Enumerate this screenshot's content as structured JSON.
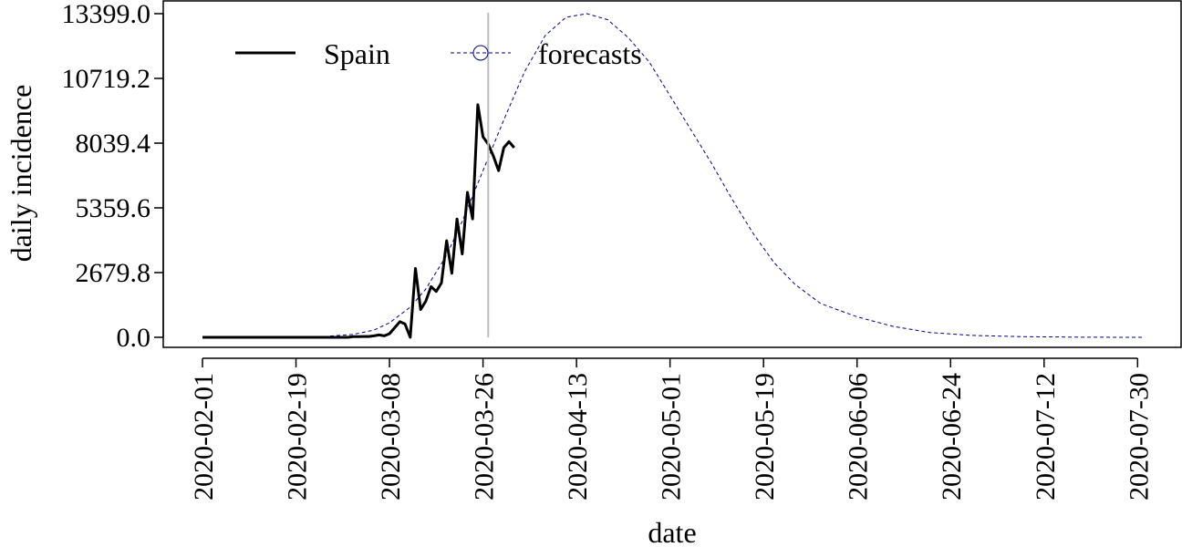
{
  "chart_data": {
    "type": "line",
    "title": "",
    "xlabel": "date",
    "ylabel": "daily incidence",
    "xlim": [
      "2020-02-01",
      "2020-07-31"
    ],
    "ylim": [
      0,
      13399.0
    ],
    "grid": false,
    "legend_position": "top-left",
    "y_ticks": [
      0.0,
      2679.8,
      5359.6,
      8039.4,
      10719.2,
      13399.0
    ],
    "y_tick_labels": [
      "0.0",
      "2679.8",
      "5359.6",
      "8039.4",
      "10719.2",
      "13399.0"
    ],
    "x_ticks": [
      "2020-02-01",
      "2020-02-19",
      "2020-03-08",
      "2020-03-26",
      "2020-04-13",
      "2020-05-01",
      "2020-05-19",
      "2020-06-06",
      "2020-06-24",
      "2020-07-12",
      "2020-07-30"
    ],
    "forecast_start": "2020-03-27",
    "series": [
      {
        "name": "Spain",
        "style": "solid",
        "color": "#000000",
        "points": [
          [
            "2020-02-01",
            0
          ],
          [
            "2020-02-15",
            0
          ],
          [
            "2020-02-29",
            0
          ],
          [
            "2020-03-01",
            25
          ],
          [
            "2020-03-02",
            30
          ],
          [
            "2020-03-03",
            35
          ],
          [
            "2020-03-04",
            35
          ],
          [
            "2020-03-05",
            60
          ],
          [
            "2020-03-06",
            100
          ],
          [
            "2020-03-07",
            60
          ],
          [
            "2020-03-08",
            150
          ],
          [
            "2020-03-09",
            400
          ],
          [
            "2020-03-10",
            650
          ],
          [
            "2020-03-11",
            550
          ],
          [
            "2020-03-12",
            0
          ],
          [
            "2020-03-13",
            2850
          ],
          [
            "2020-03-14",
            1150
          ],
          [
            "2020-03-15",
            1500
          ],
          [
            "2020-03-16",
            2100
          ],
          [
            "2020-03-17",
            1900
          ],
          [
            "2020-03-18",
            2250
          ],
          [
            "2020-03-19",
            4000
          ],
          [
            "2020-03-20",
            2650
          ],
          [
            "2020-03-21",
            4900
          ],
          [
            "2020-03-22",
            3450
          ],
          [
            "2020-03-23",
            6000
          ],
          [
            "2020-03-24",
            4900
          ],
          [
            "2020-03-25",
            9630
          ],
          [
            "2020-03-26",
            8300
          ],
          [
            "2020-03-27",
            8000
          ],
          [
            "2020-03-28",
            7500
          ],
          [
            "2020-03-29",
            6900
          ],
          [
            "2020-03-30",
            7850
          ],
          [
            "2020-03-31",
            8100
          ],
          [
            "2020-04-01",
            7850
          ]
        ]
      },
      {
        "name": "forecasts",
        "style": "dashed",
        "marker": "circle",
        "color": "#00008b",
        "peak_date": "2020-04-15",
        "peak_value": 13399.0,
        "points": [
          [
            "2020-02-01",
            0
          ],
          [
            "2020-02-15",
            5
          ],
          [
            "2020-02-25",
            40
          ],
          [
            "2020-03-01",
            120
          ],
          [
            "2020-03-05",
            300
          ],
          [
            "2020-03-08",
            600
          ],
          [
            "2020-03-12",
            1250
          ],
          [
            "2020-03-15",
            2000
          ],
          [
            "2020-03-19",
            3400
          ],
          [
            "2020-03-22",
            4800
          ],
          [
            "2020-03-26",
            6900
          ],
          [
            "2020-03-30",
            9000
          ],
          [
            "2020-04-03",
            11000
          ],
          [
            "2020-04-07",
            12500
          ],
          [
            "2020-04-11",
            13250
          ],
          [
            "2020-04-15",
            13399
          ],
          [
            "2020-04-19",
            13150
          ],
          [
            "2020-04-23",
            12400
          ],
          [
            "2020-04-27",
            11400
          ],
          [
            "2020-05-01",
            10000
          ],
          [
            "2020-05-05",
            8600
          ],
          [
            "2020-05-09",
            7200
          ],
          [
            "2020-05-13",
            5700
          ],
          [
            "2020-05-17",
            4300
          ],
          [
            "2020-05-21",
            3100
          ],
          [
            "2020-05-25",
            2200
          ],
          [
            "2020-05-30",
            1400
          ],
          [
            "2020-06-06",
            850
          ],
          [
            "2020-06-13",
            450
          ],
          [
            "2020-06-20",
            200
          ],
          [
            "2020-06-28",
            80
          ],
          [
            "2020-07-08",
            25
          ],
          [
            "2020-07-20",
            5
          ],
          [
            "2020-07-31",
            0
          ]
        ]
      }
    ]
  }
}
